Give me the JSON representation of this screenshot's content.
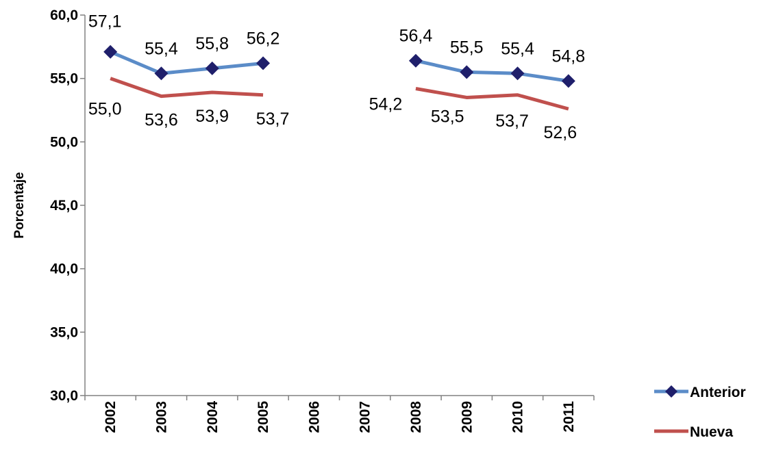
{
  "chart_data": {
    "type": "line",
    "categories": [
      "2002",
      "2003",
      "2004",
      "2005",
      "2006",
      "2007",
      "2008",
      "2009",
      "2010",
      "2011"
    ],
    "series": [
      {
        "name": "Anterior",
        "color": "#5b8cc8",
        "marker": "diamond",
        "marker_color": "#1f1f6b",
        "values": [
          57.1,
          55.4,
          55.8,
          56.2,
          null,
          null,
          56.4,
          55.5,
          55.4,
          54.8
        ],
        "labels": [
          "57,1",
          "55,4",
          "55,8",
          "56,2",
          null,
          null,
          "56,4",
          "55,5",
          "55,4",
          "54,8"
        ]
      },
      {
        "name": "Nueva",
        "color": "#c0504d",
        "marker": "none",
        "values": [
          55.0,
          53.6,
          53.9,
          53.7,
          null,
          null,
          54.2,
          53.5,
          53.7,
          52.6
        ],
        "labels": [
          "55,0",
          "53,6",
          "53,9",
          "53,7",
          null,
          null,
          "54,2",
          "53,5",
          "53,7",
          "52,6"
        ]
      }
    ],
    "ylabel": "Porcentaje",
    "xlabel": "",
    "ylim": [
      30,
      60
    ],
    "yticks": [
      "30,0",
      "35,0",
      "40,0",
      "45,0",
      "50,0",
      "55,0",
      "60,0"
    ],
    "grid": false,
    "legend_position": "bottom-right"
  }
}
